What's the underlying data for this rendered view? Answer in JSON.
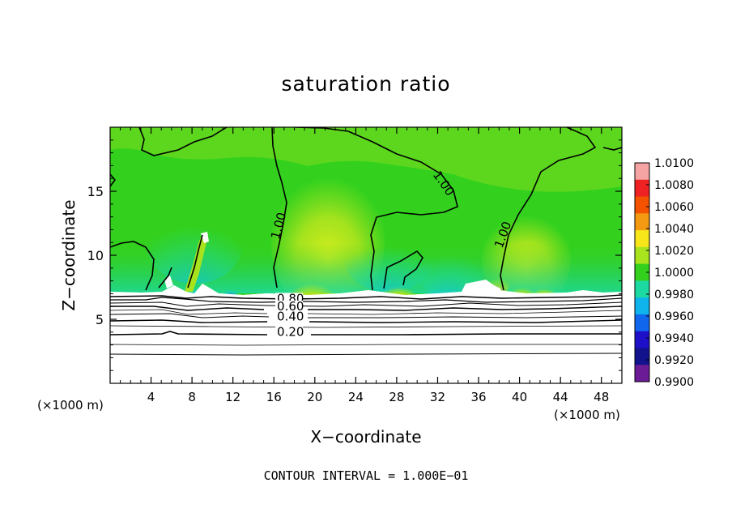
{
  "chart_data": {
    "type": "heatmap",
    "title": "saturation ratio",
    "xlabel": "X−coordinate",
    "ylabel": "Z−coordinate",
    "x_unit_left": "(×1000 m)",
    "x_unit_right": "(×1000 m)",
    "footer": "CONTOUR INTERVAL = 1.000E−01",
    "xlim": [
      0,
      50
    ],
    "ylim": [
      0,
      20
    ],
    "x_ticks": [
      4,
      8,
      12,
      16,
      20,
      24,
      28,
      32,
      36,
      40,
      44,
      48
    ],
    "y_ticks": [
      5,
      10,
      15
    ],
    "contour_labels": [
      {
        "text": "1.00",
        "x": 31.5,
        "y": 16.3,
        "angle": 55
      },
      {
        "text": "1.00",
        "x": 16.5,
        "y": 11.2,
        "angle": -75
      },
      {
        "text": "1.00",
        "x": 38.3,
        "y": 10.5,
        "angle": -70
      },
      {
        "text": "0.80",
        "x": 16.3,
        "y": 6.3,
        "angle": 0
      },
      {
        "text": "0.60",
        "x": 16.3,
        "y": 5.7,
        "angle": 0
      },
      {
        "text": "0.40",
        "x": 16.3,
        "y": 4.9,
        "angle": 0
      },
      {
        "text": "0.20",
        "x": 16.3,
        "y": 3.7,
        "angle": 0
      }
    ],
    "colorbar": {
      "labels": [
        "1.0100",
        "1.0080",
        "1.0060",
        "1.0040",
        "1.0020",
        "1.0000",
        "0.9980",
        "0.9960",
        "0.9940",
        "0.9920",
        "0.9900"
      ],
      "colors": [
        "#f5a3a3",
        "#ee2222",
        "#f55200",
        "#f39a12",
        "#f6e61a",
        "#a8e31e",
        "#33d11e",
        "#1dd9a2",
        "#0fb4ec",
        "#1166ee",
        "#1e10c8",
        "#12128c",
        "#6b1b96"
      ]
    }
  }
}
